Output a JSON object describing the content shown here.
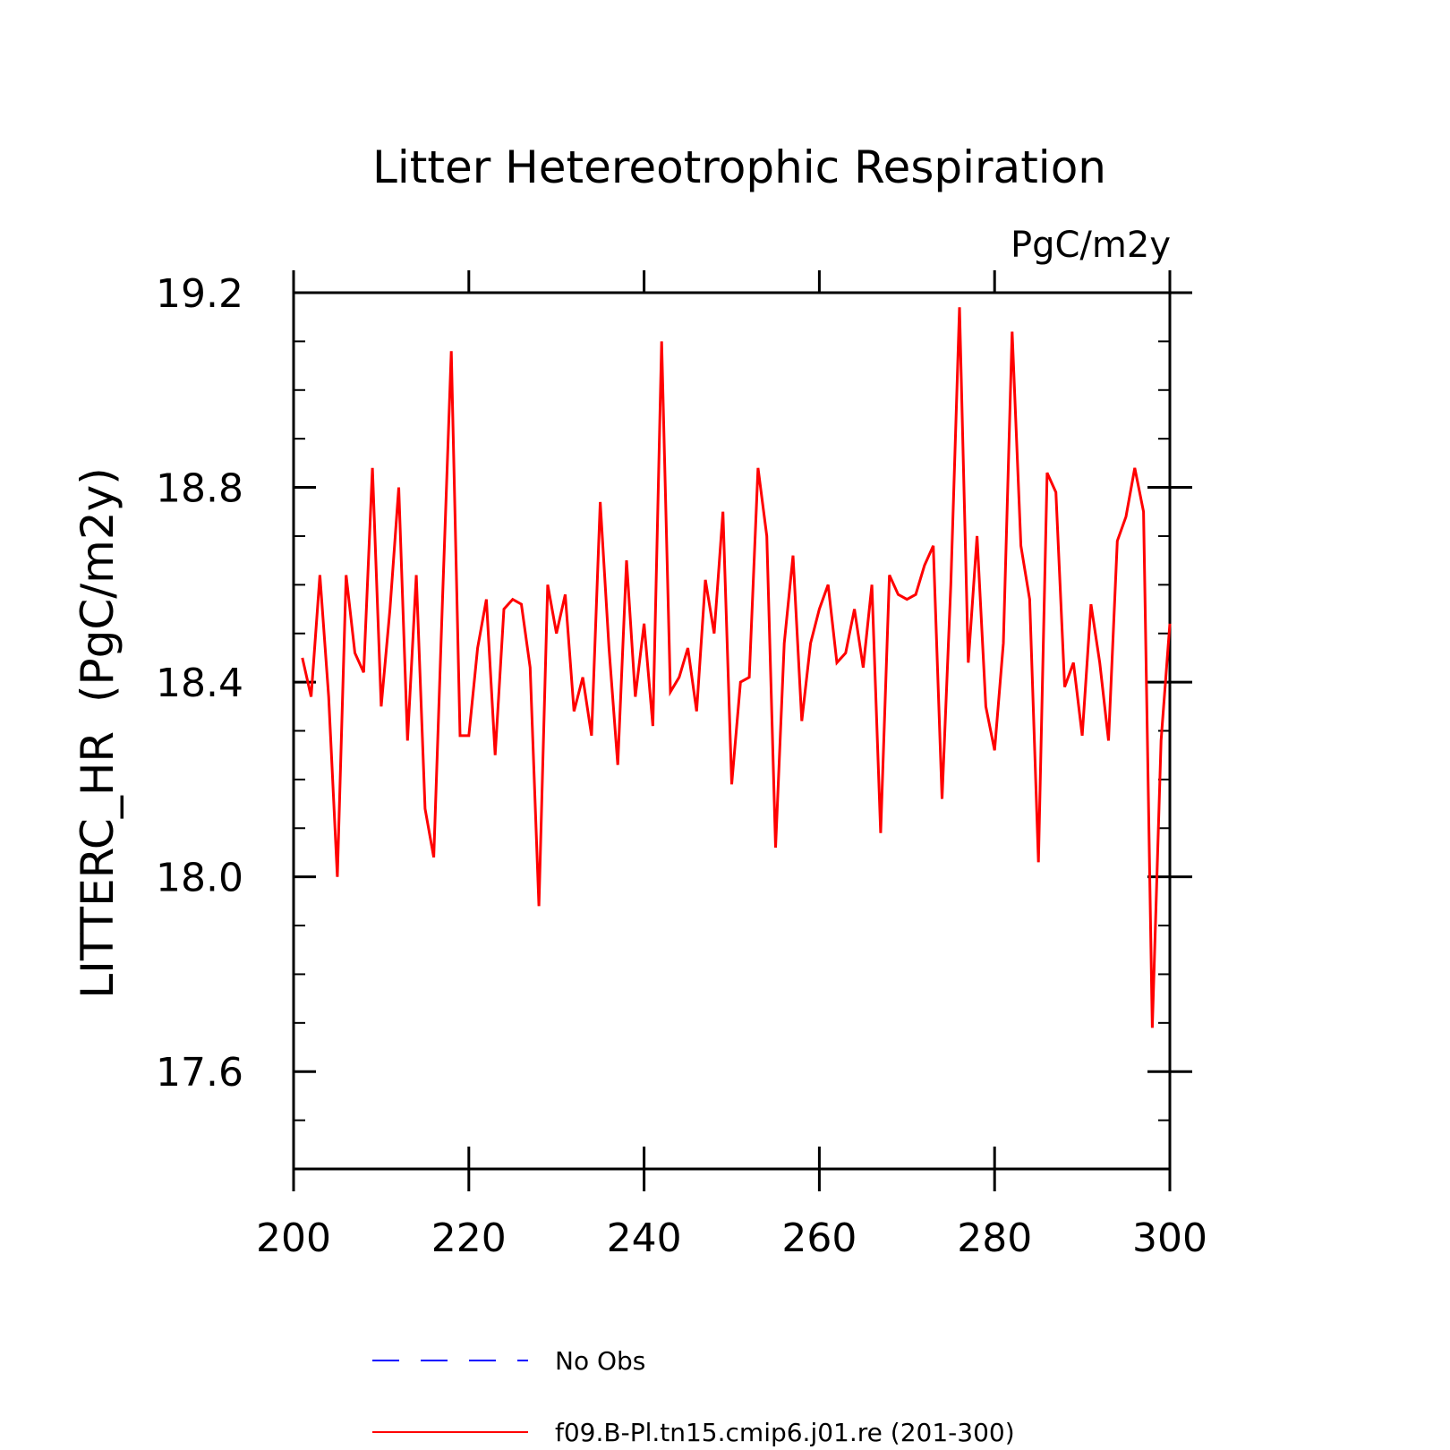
{
  "chart_data": {
    "type": "line",
    "title": "Litter Hetereotrophic Respiration",
    "units_label": "PgC/m2y",
    "xlabel": "",
    "ylabel": "LITTERC_HR  (PgC/m2y)",
    "xlim": [
      200,
      300
    ],
    "ylim": [
      17.4,
      19.2
    ],
    "x_ticks": [
      "200",
      "220",
      "240",
      "260",
      "280",
      "300"
    ],
    "y_ticks": [
      "17.6",
      "18.0",
      "18.4",
      "18.8",
      "19.2"
    ],
    "grid": false,
    "legend_position": "bottom",
    "legend": [
      {
        "label": "No Obs",
        "color": "#0000ff",
        "style": "dashed"
      },
      {
        "label": "f09.B-Pl.tn15.cmip6.j01.re (201-300)",
        "color": "#ff0000",
        "style": "solid"
      }
    ],
    "series": [
      {
        "name": "f09.B-Pl.tn15.cmip6.j01.re (201-300)",
        "color": "#ff0000",
        "x": [
          201,
          202,
          203,
          204,
          205,
          206,
          207,
          208,
          209,
          210,
          211,
          212,
          213,
          214,
          215,
          216,
          217,
          218,
          219,
          220,
          221,
          222,
          223,
          224,
          225,
          226,
          227,
          228,
          229,
          230,
          231,
          232,
          233,
          234,
          235,
          236,
          237,
          238,
          239,
          240,
          241,
          242,
          243,
          244,
          245,
          246,
          247,
          248,
          249,
          250,
          251,
          252,
          253,
          254,
          255,
          256,
          257,
          258,
          259,
          260,
          261,
          262,
          263,
          264,
          265,
          266,
          267,
          268,
          269,
          270,
          271,
          272,
          273,
          274,
          275,
          276,
          277,
          278,
          279,
          280,
          281,
          282,
          283,
          284,
          285,
          286,
          287,
          288,
          289,
          290,
          291,
          292,
          293,
          294,
          295,
          296,
          297,
          298,
          299,
          300
        ],
        "values": [
          18.45,
          18.37,
          18.62,
          18.37,
          18.0,
          18.62,
          18.46,
          18.42,
          18.84,
          18.35,
          18.55,
          18.8,
          18.28,
          18.62,
          18.14,
          18.04,
          18.57,
          19.08,
          18.29,
          18.29,
          18.47,
          18.57,
          18.25,
          18.55,
          18.57,
          18.56,
          18.43,
          17.94,
          18.6,
          18.5,
          18.58,
          18.34,
          18.41,
          18.29,
          18.77,
          18.47,
          18.23,
          18.65,
          18.37,
          18.52,
          18.31,
          19.1,
          18.38,
          18.41,
          18.47,
          18.34,
          18.61,
          18.5,
          18.75,
          18.19,
          18.4,
          18.41,
          18.84,
          18.7,
          18.06,
          18.48,
          18.66,
          18.32,
          18.48,
          18.55,
          18.6,
          18.44,
          18.46,
          18.55,
          18.43,
          18.6,
          18.09,
          18.62,
          18.58,
          18.57,
          18.58,
          18.64,
          18.68,
          18.16,
          18.6,
          19.17,
          18.44,
          18.7,
          18.35,
          18.26,
          18.48,
          19.12,
          18.68,
          18.57,
          18.03,
          18.83,
          18.79,
          18.39,
          18.44,
          18.29,
          18.56,
          18.44,
          18.28,
          18.69,
          18.74,
          18.84,
          18.75,
          17.69,
          18.28,
          18.52
        ]
      }
    ]
  }
}
